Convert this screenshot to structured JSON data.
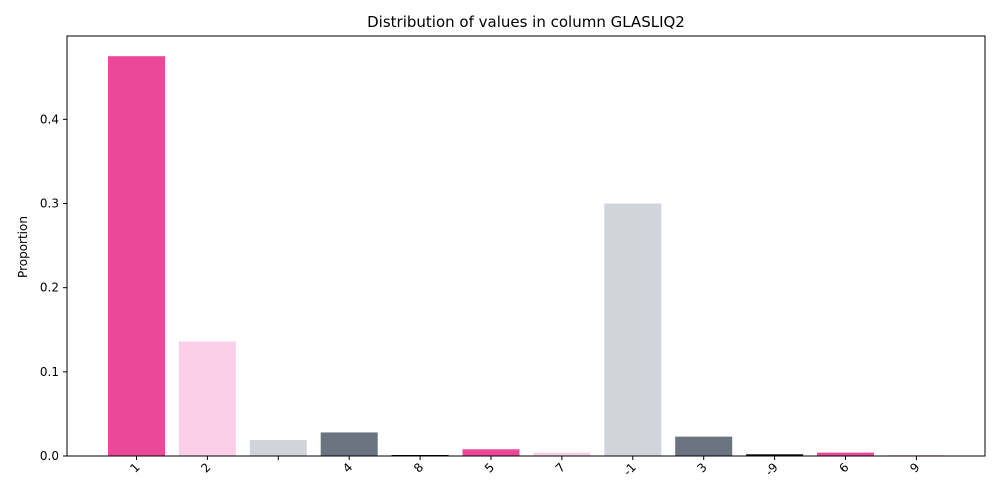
{
  "chart_data": {
    "type": "bar",
    "title": "Distribution of values in column GLASLIQ2",
    "xlabel": "",
    "ylabel": "Proportion",
    "categories": [
      "1",
      "2",
      "",
      "4",
      "8",
      "5",
      "7",
      "-1",
      "3",
      "-9",
      "6",
      "9"
    ],
    "values": [
      0.475,
      0.136,
      0.019,
      0.028,
      0.001,
      0.008,
      0.004,
      0.3,
      0.023,
      0.002,
      0.004,
      0.0005
    ],
    "colors": [
      "#ec4899",
      "#fbcfe8",
      "#d1d5db",
      "#6b7280",
      "#000000",
      "#ec4899",
      "#fbcfe8",
      "#d1d5db",
      "#6b7280",
      "#000000",
      "#ec4899",
      "#fbcfe8"
    ],
    "yticks": [
      0.0,
      0.1,
      0.2,
      0.3,
      0.4
    ],
    "ytick_labels": [
      "0.0",
      "0.1",
      "0.2",
      "0.3",
      "0.4"
    ],
    "ylim": [
      0,
      0.499
    ],
    "grid": false,
    "legend": "none"
  }
}
